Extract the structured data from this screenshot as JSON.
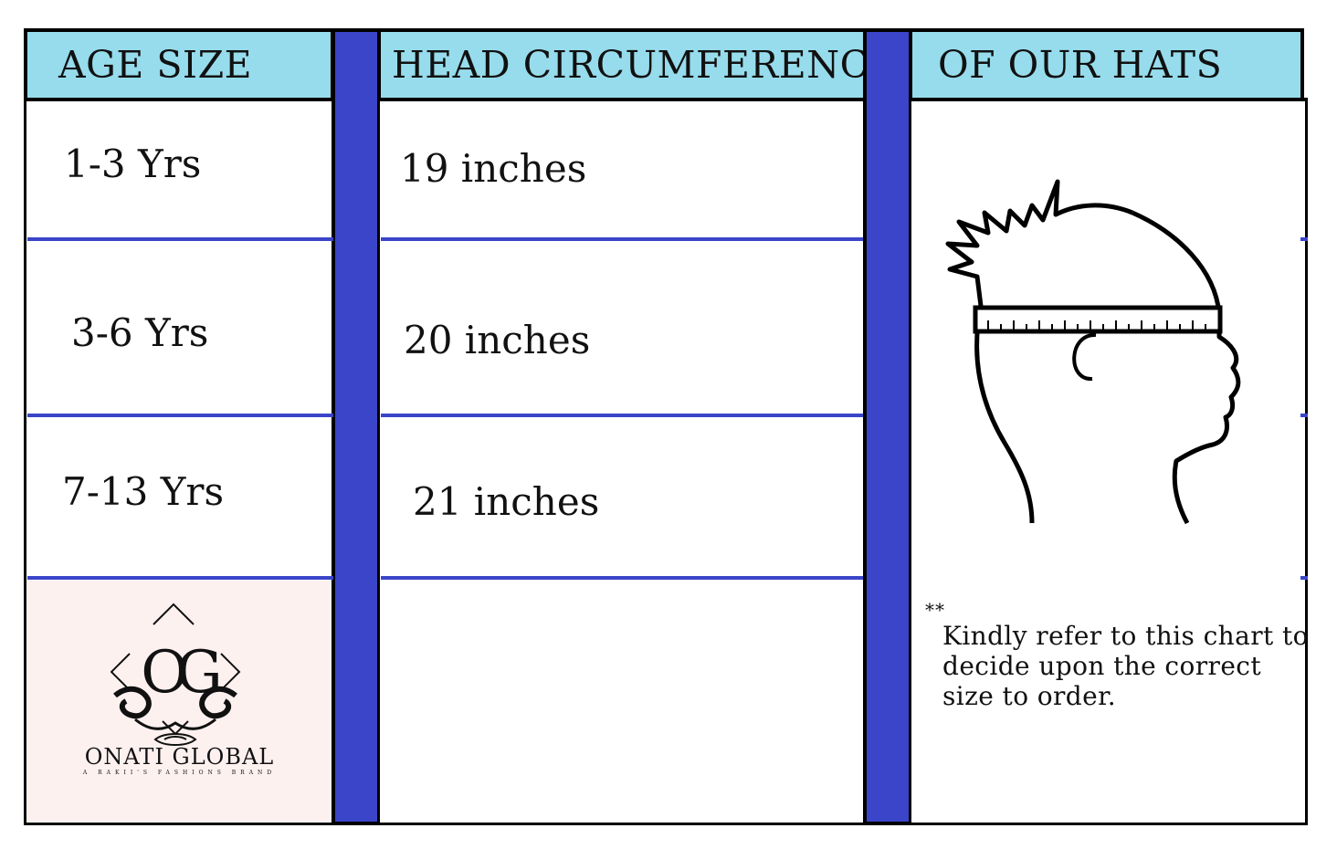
{
  "headers": {
    "age_size": "AGE SIZE",
    "head_circumference": "HEAD CIRCUMFERENCE",
    "of_our_hats": "OF OUR HATS"
  },
  "rows": [
    {
      "age": "1-3 Yrs",
      "circumference": "19 inches"
    },
    {
      "age": "3-6 Yrs",
      "circumference": "20 inches"
    },
    {
      "age": "7-13 Yrs",
      "circumference": "21 inches"
    }
  ],
  "brand": {
    "name": "ONATI GLOBAL",
    "tagline": "A RAKII'S FASHIONS BRAND",
    "monogram": "OG"
  },
  "note": {
    "stars": "**",
    "line1": "Kindly refer to this chart to",
    "line2": "decide upon the correct",
    "line3": "size to order."
  },
  "colors": {
    "header_bg": "#97dcec",
    "separator_blue": "#3b45c9",
    "logo_bg": "#fdf1f0"
  },
  "illustration": {
    "icon": "child-head-measuring-tape-icon"
  }
}
